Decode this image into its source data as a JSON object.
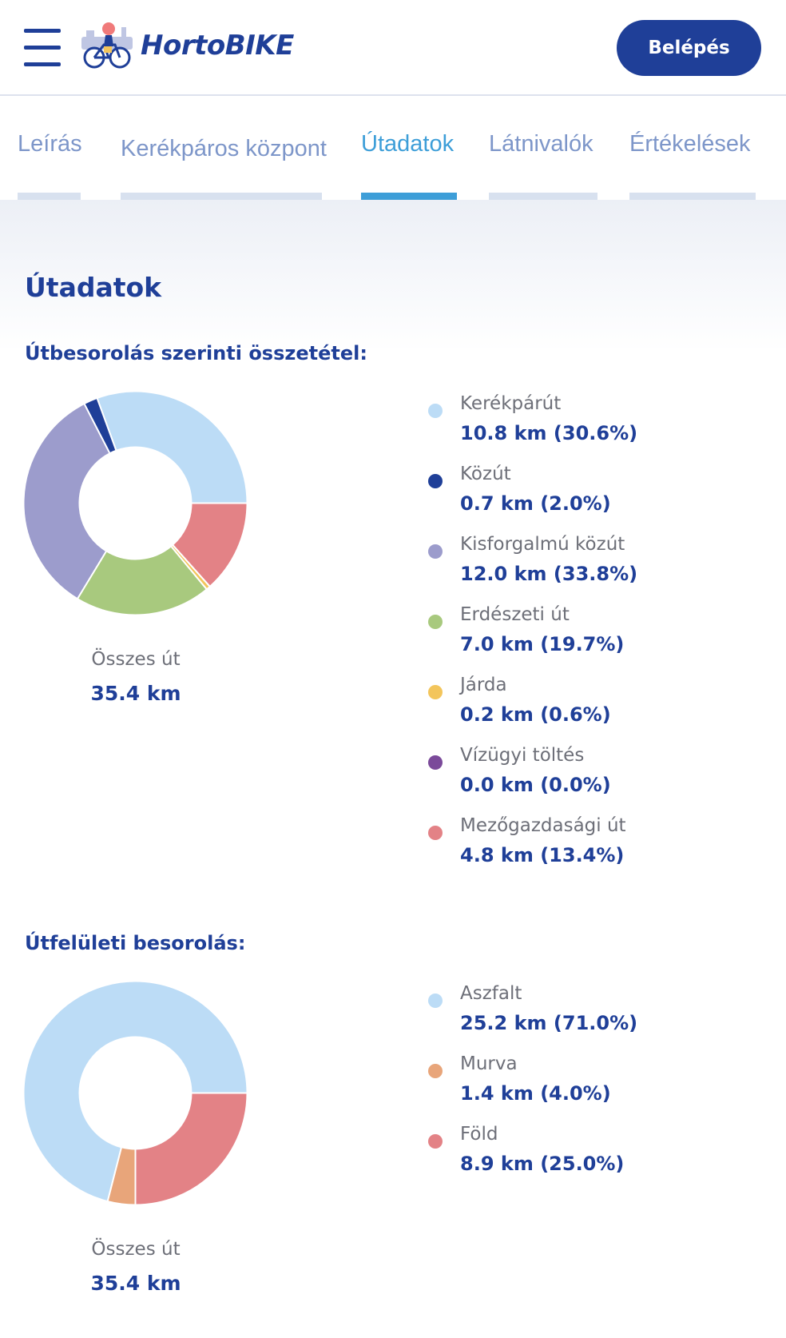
{
  "header": {
    "logo_text": "HortoBIKE",
    "login_label": "Belépés"
  },
  "tabs": [
    {
      "label": "Leírás",
      "active": false
    },
    {
      "label": "Kerékpáros központ",
      "active": false
    },
    {
      "label": "Útadatok",
      "active": true
    },
    {
      "label": "Látnivalók",
      "active": false
    },
    {
      "label": "Értékelések",
      "active": false
    }
  ],
  "main": {
    "title": "Útadatok"
  },
  "colors": {
    "brand": "#1f3f98",
    "accent_tab": "#3d9ed8"
  },
  "chart_data": [
    {
      "type": "pie",
      "title": "Útbesorolás szerinti összetétel:",
      "total_label": "Összes út",
      "total_value": "35.4 km",
      "categories": [
        "Kerékpárút",
        "Közút",
        "Kisforgalmú közút",
        "Erdészeti út",
        "Járda",
        "Vízügyi töltés",
        "Mezőgazdasági út"
      ],
      "values": [
        30.6,
        2.0,
        33.8,
        19.7,
        0.6,
        0.0,
        13.4
      ],
      "value_labels": [
        "10.8 km (30.6%)",
        "0.7 km (2.0%)",
        "12.0 km (33.8%)",
        "7.0 km (19.7%)",
        "0.2 km (0.6%)",
        "0.0 km (0.0%)",
        "4.8 km (13.4%)"
      ],
      "colors": [
        "#bcdcf6",
        "#1f3f98",
        "#9c9ccc",
        "#a8c97e",
        "#f3c55b",
        "#7b4a9a",
        "#e38286"
      ]
    },
    {
      "type": "pie",
      "title": "Útfelületi besorolás:",
      "total_label": "Összes út",
      "total_value": "35.4 km",
      "categories": [
        "Aszfalt",
        "Murva",
        "Föld"
      ],
      "values": [
        71.0,
        4.0,
        25.0
      ],
      "value_labels": [
        "25.2 km (71.0%)",
        "1.4 km (4.0%)",
        "8.9 km (25.0%)"
      ],
      "colors": [
        "#bcdcf6",
        "#e8a57a",
        "#e38286"
      ]
    }
  ]
}
